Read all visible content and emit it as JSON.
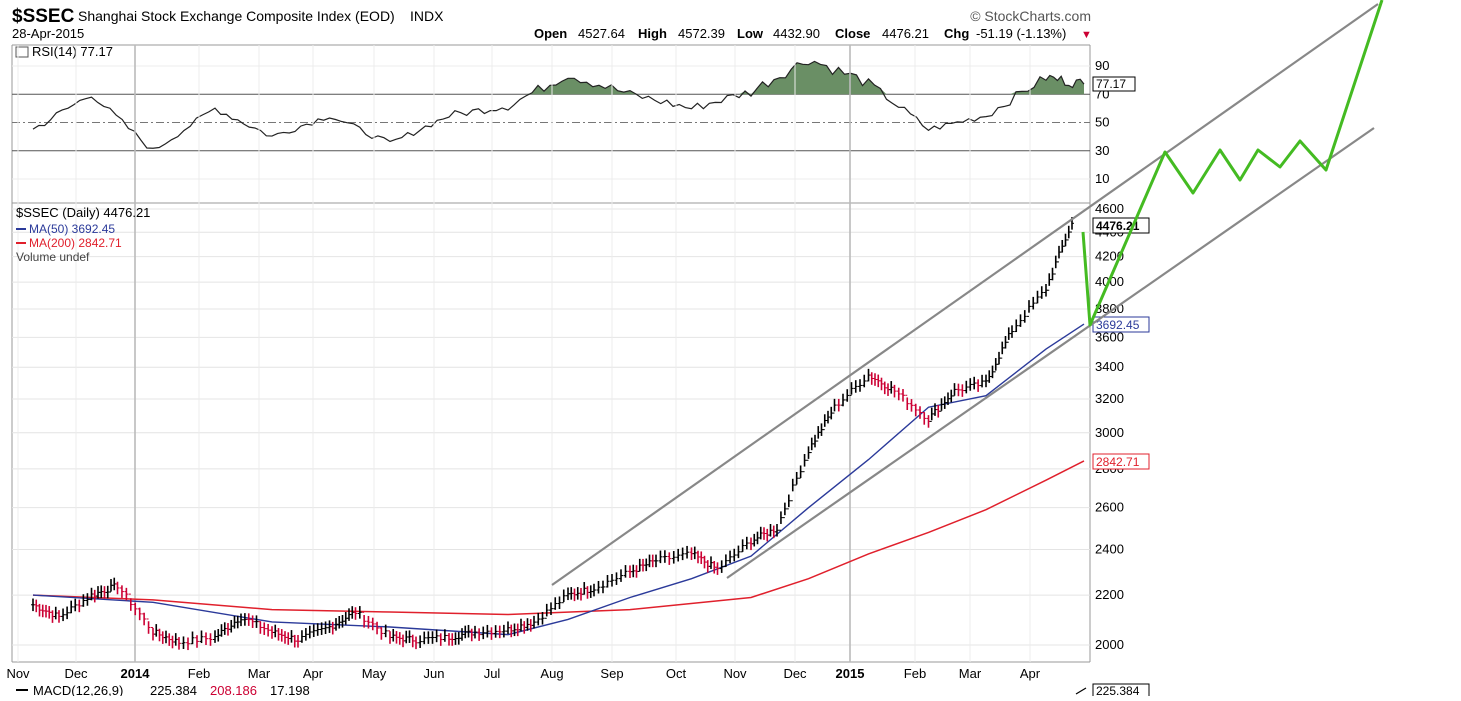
{
  "header": {
    "symbol": "$SSEC",
    "name": "Shanghai Stock Exchange Composite Index (EOD)",
    "exchange": "INDX",
    "date": "28-Apr-2015",
    "watermark": "© StockCharts.com",
    "open_label": "Open",
    "open_value": "4527.64",
    "high_label": "High",
    "high_value": "4572.39",
    "low_label": "Low",
    "low_value": "4432.90",
    "close_label": "Close",
    "close_value": "4476.21",
    "chg_label": "Chg",
    "chg_value": "-51.19 (-1.13%)",
    "chg_arrow": "▼"
  },
  "rsi_panel": {
    "legend": "RSI(14) 77.17",
    "current_value": "77.17",
    "ticks": [
      "90",
      "70",
      "50",
      "30",
      "10"
    ],
    "overbought": 70,
    "oversold": 30
  },
  "price_panel": {
    "legend_main": "$SSEC (Daily) 4476.21",
    "legend_ma50": "MA(50) 3692.45",
    "legend_ma200": "MA(200) 2842.71",
    "legend_volume": "Volume undef",
    "price_tag": "4476.21",
    "ma50_tag": "3692.45",
    "ma200_tag": "2842.71",
    "ticks": [
      "4600",
      "4400",
      "4200",
      "4000",
      "3800",
      "3600",
      "3400",
      "3200",
      "3000",
      "2800",
      "2600",
      "2400",
      "2200",
      "2000"
    ],
    "x_labels": [
      "Nov",
      "Dec",
      "2014",
      "Feb",
      "Mar",
      "Apr",
      "May",
      "Jun",
      "Jul",
      "Aug",
      "Sep",
      "Oct",
      "Nov",
      "Dec",
      "2015",
      "Feb",
      "Mar",
      "Apr"
    ]
  },
  "macd_panel": {
    "label": "MACD(12,26,9)",
    "v1": "225.384",
    "v2": "208.186",
    "v3": "17.198",
    "tag": "225.384"
  },
  "colors": {
    "price_up": "#000000",
    "price_down": "#cc0033",
    "ma50": "#2b3a9a",
    "ma200": "#e0202c",
    "channel": "#888888",
    "projection": "#44bb22",
    "rsi_fill": "#6a8f65"
  },
  "chart_data": {
    "type": "line",
    "title": "$SSEC Shanghai Stock Exchange Composite Index (EOD)",
    "x_range": [
      "2013-11",
      "2015-04-28"
    ],
    "ylim": [
      1950,
      4650
    ],
    "y_scale": "log",
    "series": [
      {
        "name": "$SSEC (Daily)",
        "points": [
          [
            "2013-11",
            2160
          ],
          [
            "2013-11",
            2110
          ],
          [
            "2013-12",
            2200
          ],
          [
            "2013-12",
            2240
          ],
          [
            "2014-01",
            2050
          ],
          [
            "2014-01",
            2010
          ],
          [
            "2014-02",
            2030
          ],
          [
            "2014-02",
            2110
          ],
          [
            "2014-03",
            2050
          ],
          [
            "2014-03",
            2020
          ],
          [
            "2014-04",
            2070
          ],
          [
            "2014-04",
            2130
          ],
          [
            "2014-05",
            2030
          ],
          [
            "2014-05",
            2020
          ],
          [
            "2014-06",
            2030
          ],
          [
            "2014-06",
            2050
          ],
          [
            "2014-07",
            2060
          ],
          [
            "2014-07",
            2090
          ],
          [
            "2014-08",
            2200
          ],
          [
            "2014-08",
            2230
          ],
          [
            "2014-09",
            2300
          ],
          [
            "2014-09",
            2350
          ],
          [
            "2014-10",
            2380
          ],
          [
            "2014-10",
            2310
          ],
          [
            "2014-11",
            2440
          ],
          [
            "2014-11",
            2500
          ],
          [
            "2014-12",
            2900
          ],
          [
            "2014-12",
            3150
          ],
          [
            "2015-01",
            3350
          ],
          [
            "2015-01",
            3250
          ],
          [
            "2015-02",
            3080
          ],
          [
            "2015-02",
            3250
          ],
          [
            "2015-03",
            3300
          ],
          [
            "2015-03",
            3650
          ],
          [
            "2015-04",
            3950
          ],
          [
            "2015-04",
            4476
          ]
        ]
      },
      {
        "name": "MA(50)",
        "points": [
          [
            "2013-11",
            2200
          ],
          [
            "2014-01",
            2170
          ],
          [
            "2014-03",
            2090
          ],
          [
            "2014-05",
            2070
          ],
          [
            "2014-07",
            2040
          ],
          [
            "2014-08",
            2100
          ],
          [
            "2014-09",
            2190
          ],
          [
            "2014-10",
            2270
          ],
          [
            "2014-11",
            2370
          ],
          [
            "2014-12",
            2600
          ],
          [
            "2015-01",
            2850
          ],
          [
            "2015-02",
            3150
          ],
          [
            "2015-03",
            3220
          ],
          [
            "2015-04",
            3520
          ],
          [
            "2015-04-28",
            3692.45
          ]
        ]
      },
      {
        "name": "MA(200)",
        "points": [
          [
            "2013-11",
            2200
          ],
          [
            "2014-01",
            2180
          ],
          [
            "2014-03",
            2140
          ],
          [
            "2014-05",
            2130
          ],
          [
            "2014-07",
            2120
          ],
          [
            "2014-09",
            2140
          ],
          [
            "2014-11",
            2190
          ],
          [
            "2014-12",
            2270
          ],
          [
            "2015-01",
            2380
          ],
          [
            "2015-02",
            2480
          ],
          [
            "2015-03",
            2590
          ],
          [
            "2015-04",
            2740
          ],
          [
            "2015-04-28",
            2842.71
          ]
        ]
      },
      {
        "name": "RSI(14)",
        "points": [
          [
            "2013-11",
            45
          ],
          [
            "2013-12",
            70
          ],
          [
            "2014-01",
            30
          ],
          [
            "2014-02",
            60
          ],
          [
            "2014-03",
            40
          ],
          [
            "2014-04",
            55
          ],
          [
            "2014-05",
            35
          ],
          [
            "2014-06",
            55
          ],
          [
            "2014-07",
            62
          ],
          [
            "2014-08",
            84
          ],
          [
            "2014-09",
            70
          ],
          [
            "2014-10",
            60
          ],
          [
            "2014-11",
            72
          ],
          [
            "2014-12",
            95
          ],
          [
            "2015-01",
            78
          ],
          [
            "2015-02",
            45
          ],
          [
            "2015-03",
            55
          ],
          [
            "2015-04",
            82
          ],
          [
            "2015-04-28",
            77.17
          ]
        ]
      }
    ]
  }
}
